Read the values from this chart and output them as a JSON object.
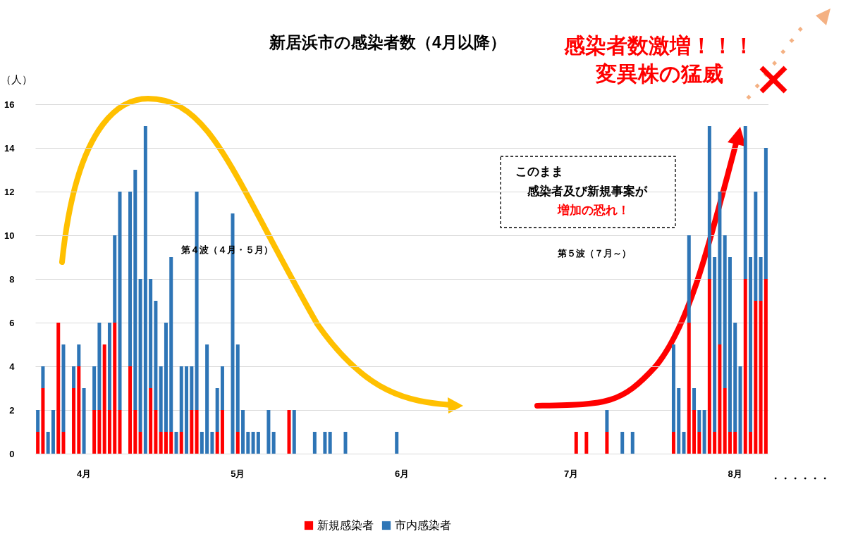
{
  "chart_data": {
    "type": "bar",
    "stacked": true,
    "title": "新居浜市の感染者数（4月以降）",
    "ylabel": "（人）",
    "categories": [
      null,
      null,
      null,
      null,
      null,
      null,
      null,
      null,
      null,
      "4月",
      null,
      null,
      null,
      null,
      null,
      null,
      null,
      null,
      null,
      null,
      null,
      null,
      null,
      null,
      null,
      null,
      null,
      null,
      null,
      null,
      null,
      null,
      null,
      null,
      null,
      null,
      null,
      null,
      null,
      "5月",
      null,
      null,
      null,
      null,
      null,
      null,
      null,
      null,
      null,
      null,
      null,
      null,
      null,
      null,
      null,
      null,
      null,
      null,
      null,
      null,
      null,
      null,
      null,
      null,
      null,
      null,
      null,
      null,
      null,
      null,
      null,
      "6月",
      null,
      null,
      null,
      null,
      null,
      null,
      null,
      null,
      null,
      null,
      null,
      null,
      null,
      null,
      null,
      null,
      null,
      null,
      null,
      null,
      null,
      null,
      null,
      null,
      null,
      null,
      null,
      null,
      null,
      null,
      null,
      null,
      "7月",
      null,
      null,
      null,
      null,
      null,
      null,
      null,
      null,
      null,
      null,
      null,
      null,
      null,
      null,
      null,
      null,
      null,
      null,
      null,
      null,
      null,
      null,
      null,
      null,
      null,
      null,
      null,
      null,
      null,
      null,
      null,
      "8月",
      null,
      null,
      null,
      null,
      null,
      null
    ],
    "series": [
      {
        "name": "新規感染者",
        "color": "#ff0000",
        "values": [
          1,
          3,
          null,
          null,
          6,
          1,
          null,
          3,
          4,
          null,
          null,
          2,
          2,
          5,
          2,
          6,
          2,
          null,
          4,
          2,
          1,
          null,
          3,
          2,
          1,
          1,
          1,
          null,
          1,
          null,
          2,
          2,
          null,
          null,
          null,
          1,
          2,
          null,
          null,
          1,
          null,
          null,
          null,
          null,
          null,
          null,
          null,
          null,
          null,
          2,
          null,
          null,
          null,
          null,
          null,
          null,
          null,
          null,
          null,
          null,
          null,
          null,
          null,
          null,
          null,
          null,
          null,
          null,
          null,
          null,
          null,
          null,
          null,
          null,
          null,
          null,
          null,
          null,
          null,
          null,
          null,
          null,
          null,
          null,
          null,
          null,
          null,
          null,
          null,
          null,
          null,
          null,
          null,
          null,
          null,
          null,
          null,
          null,
          null,
          null,
          null,
          null,
          null,
          null,
          null,
          1,
          null,
          1,
          null,
          null,
          null,
          1,
          null,
          null,
          null,
          null,
          null,
          null,
          null,
          null,
          null,
          null,
          null,
          null,
          1,
          null,
          null,
          6,
          2,
          1,
          null,
          8,
          1,
          5,
          3,
          1,
          1,
          null,
          8,
          1,
          7,
          7,
          8
        ]
      },
      {
        "name": "市内感染者",
        "color": "#2e75b6",
        "values": [
          1,
          1,
          1,
          2,
          null,
          4,
          null,
          1,
          1,
          3,
          null,
          2,
          4,
          null,
          4,
          4,
          10,
          null,
          8,
          11,
          7,
          15,
          5,
          5,
          3,
          5,
          8,
          1,
          3,
          4,
          2,
          10,
          1,
          5,
          1,
          2,
          2,
          null,
          11,
          4,
          2,
          1,
          1,
          1,
          null,
          2,
          1,
          null,
          null,
          null,
          2,
          null,
          null,
          null,
          1,
          null,
          1,
          1,
          null,
          null,
          1,
          null,
          null,
          null,
          null,
          null,
          null,
          null,
          null,
          null,
          1,
          null,
          null,
          null,
          null,
          null,
          null,
          null,
          null,
          null,
          null,
          null,
          null,
          null,
          null,
          null,
          null,
          null,
          null,
          null,
          null,
          null,
          null,
          null,
          null,
          null,
          null,
          null,
          null,
          null,
          null,
          null,
          null,
          null,
          null,
          null,
          null,
          null,
          null,
          null,
          null,
          1,
          null,
          null,
          1,
          null,
          1,
          null,
          null,
          null,
          null,
          null,
          null,
          null,
          4,
          3,
          1,
          4,
          1,
          1,
          2,
          7,
          8,
          7,
          7,
          8,
          5,
          4,
          7,
          8,
          5,
          2,
          6
        ]
      }
    ],
    "ylim": [
      0,
      16
    ],
    "yticks": [
      0,
      2,
      4,
      6,
      8,
      10,
      12,
      14,
      16
    ],
    "grid": "y",
    "legend": "bottom",
    "annotations": [
      "第４波（４月・５月）",
      "第５波（７月～）",
      "このまま",
      "感染者及び新規事案が",
      "増加の恐れ！",
      "感染者数激増！！！",
      "変異株の猛威",
      "・・・・・・"
    ]
  }
}
